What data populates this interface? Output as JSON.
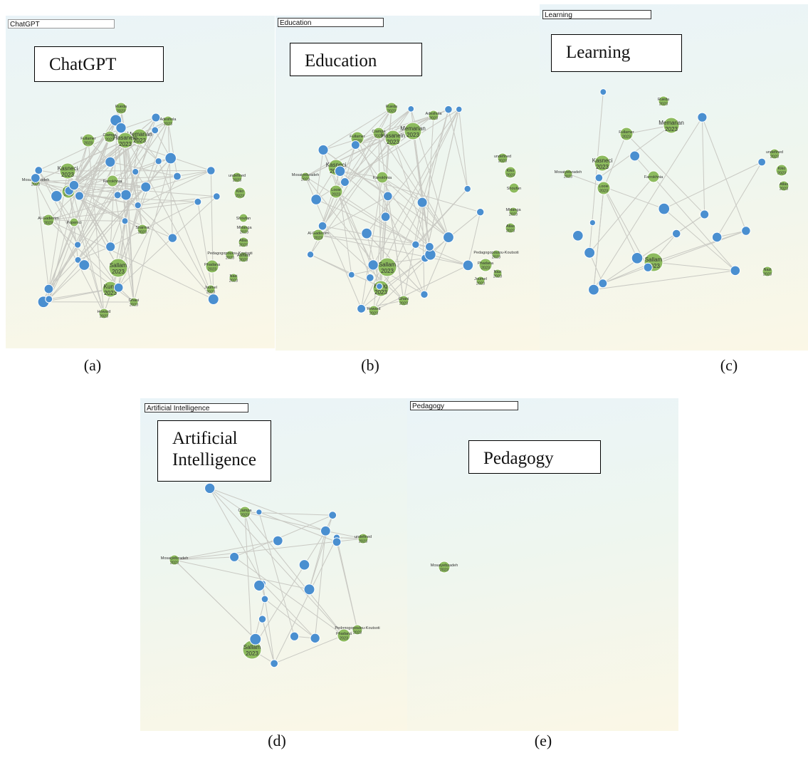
{
  "panels": [
    {
      "id": "a",
      "search_value": "ChatGPT",
      "keyword_label": "ChatGPT",
      "caption": "(a)",
      "visible_labels": [
        "Rueda 2023",
        "Adeshola 2023",
        "Memarian 2023",
        "Ciampa 2023",
        "Hasanein 2023",
        "Fullamer 2023",
        "Kasneci 2023",
        "Mosaiyebzadeh 2023",
        "Looie 2023",
        "Farrokhnia",
        "undefined 2023",
        "Kiko 2023",
        "Shoufan",
        "Sharma 2023",
        "Mhlanga 2023",
        "Atlas 2023",
        "Alsharif 2023",
        "Al-Gaderrim 2023",
        "Popenici",
        "Pedagogopoulou-Koutsoti 2023",
        "Phadana 2023",
        "Nazi 2023",
        "Sallam 2023",
        "Kung 2023",
        "Joumel 2023",
        "Ghani 2023",
        "Howard 2023"
      ]
    },
    {
      "id": "b",
      "search_value": "Education",
      "keyword_label": "Education",
      "caption": "(b)",
      "visible_labels": [
        "Rueda 2023",
        "Adeshola 2023",
        "Memarian 2023",
        "Ciampa 2023",
        "Hasanein 2023",
        "Fullamer 2023",
        "Kasneci 2023",
        "Mosaiyebzadeh 2023",
        "Looie 2023",
        "Farrokhnia",
        "undefined 2023",
        "Kiko 2023",
        "Shoufan",
        "Mhlanga 2023",
        "Atlas 2023",
        "Al-Gaderrim 2023",
        "Pedagogopoulou-Koutsoti 2023",
        "Phadana 2023",
        "Nazi 2023",
        "Sallam 2023",
        "Kung 2023",
        "Joumel 2023",
        "Ghani 2023",
        "Howard 2023"
      ]
    },
    {
      "id": "c",
      "search_value": "Learning",
      "keyword_label": "Learning",
      "caption": "(c)",
      "visible_labels": [
        "Rueda 2023",
        "Memarian 2023",
        "Fullamer 2023",
        "Kasneci 2023",
        "Mosaiyebzadeh 2023",
        "Looie 2023",
        "Farrokhnia",
        "undefined 2023",
        "Kiko 2023",
        "Atlas 2023",
        "Nazi 2023",
        "Sallam 2023"
      ]
    },
    {
      "id": "d",
      "search_value": "Artificial Intelligence",
      "keyword_label": "Artificial Intelligence",
      "caption": "(d)",
      "visible_labels": [
        "Ciampa 2023",
        "Mosaiyebzadeh 2023",
        "undefined 2023",
        "Pedagogopoulou-Koutsoti 2023",
        "Phadana 2023",
        "Sallam 2023"
      ]
    },
    {
      "id": "e",
      "search_value": "Pedagogy",
      "keyword_label": "Pedagogy",
      "caption": "(e)",
      "visible_labels": [
        "Mosaiyebzadeh 2023"
      ]
    }
  ],
  "colors": {
    "green_node": "#8dbb5e",
    "blue_node": "#4a8fd0",
    "edge": "#c9c9c3"
  }
}
